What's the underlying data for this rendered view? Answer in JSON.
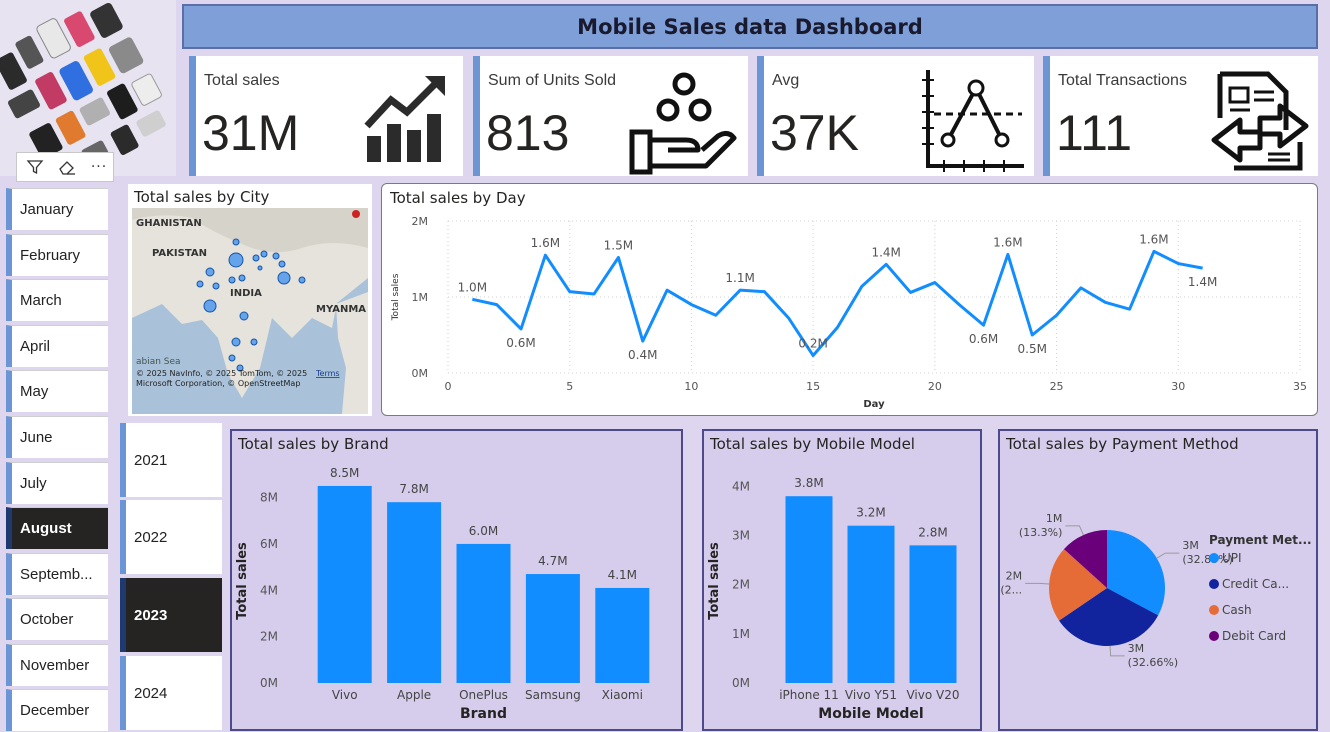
{
  "header": {
    "title": "Mobile Sales data Dashboard"
  },
  "kpis": [
    {
      "label": "Total sales",
      "value": "31M",
      "icon": "trend-up-chart-icon"
    },
    {
      "label": "Sum of Units Sold",
      "value": "813",
      "icon": "hand-coins-icon"
    },
    {
      "label": "Avg",
      "value": "37K",
      "icon": "average-chart-icon"
    },
    {
      "label": "Total Transactions",
      "value": "111",
      "icon": "transaction-document-icon"
    }
  ],
  "filter_toolbar": {
    "icons": [
      "filter-icon",
      "eraser-icon",
      "more-options-icon"
    ],
    "more_label": "···"
  },
  "months": {
    "items": [
      "January",
      "February",
      "March",
      "April",
      "May",
      "June",
      "July",
      "August",
      "Septemb...",
      "October",
      "November",
      "December"
    ],
    "selected": "August"
  },
  "years": {
    "items": [
      "2021",
      "2022",
      "2023",
      "2024"
    ],
    "selected": "2023"
  },
  "map": {
    "title": "Total sales by City",
    "places": [
      "GHANISTAN",
      "PAKISTAN",
      "INDIA",
      "MYANMA",
      "abian Sea"
    ],
    "attribution_line1": "© 2025 NavInfo, © 2025 TomTom, © 2025",
    "attribution_terms": "Terms",
    "attribution_line2": "Microsoft Corporation, © OpenStreetMap"
  },
  "chart_data": [
    {
      "id": "day",
      "type": "line",
      "title": "Total sales by Day",
      "xlabel": "Day",
      "ylabel": "Total sales",
      "xlim": [
        0,
        35
      ],
      "xticks": [
        0,
        5,
        10,
        15,
        20,
        25,
        30,
        35
      ],
      "ylim": [
        0,
        2
      ],
      "yticks": [
        {
          "v": 0,
          "label": "0M"
        },
        {
          "v": 1,
          "label": "1M"
        },
        {
          "v": 2,
          "label": "2M"
        }
      ],
      "x": [
        1,
        2,
        3,
        4,
        5,
        6,
        7,
        8,
        9,
        10,
        11,
        12,
        13,
        14,
        15,
        16,
        17,
        18,
        19,
        20,
        21,
        22,
        23,
        24,
        25,
        26,
        27,
        28,
        29,
        30,
        31
      ],
      "y": [
        0.97,
        0.9,
        0.58,
        1.55,
        1.07,
        1.04,
        1.52,
        0.42,
        1.09,
        0.9,
        0.76,
        1.09,
        1.07,
        0.72,
        0.23,
        0.6,
        1.14,
        1.43,
        1.06,
        1.19,
        0.9,
        0.63,
        1.56,
        0.5,
        0.76,
        1.12,
        0.93,
        0.84,
        1.6,
        1.44,
        1.38
      ],
      "data_labels": [
        {
          "x": 1,
          "label": "1.0M",
          "pos": "above"
        },
        {
          "x": 3,
          "label": "0.6M",
          "pos": "below"
        },
        {
          "x": 4,
          "label": "1.6M",
          "pos": "above"
        },
        {
          "x": 7,
          "label": "1.5M",
          "pos": "above"
        },
        {
          "x": 8,
          "label": "0.4M",
          "pos": "below"
        },
        {
          "x": 12,
          "label": "1.1M",
          "pos": "above"
        },
        {
          "x": 15,
          "label": "0.2M",
          "pos": "above"
        },
        {
          "x": 18,
          "label": "1.4M",
          "pos": "above"
        },
        {
          "x": 22,
          "label": "0.6M",
          "pos": "below"
        },
        {
          "x": 23,
          "label": "1.6M",
          "pos": "above"
        },
        {
          "x": 24,
          "label": "0.5M",
          "pos": "below"
        },
        {
          "x": 29,
          "label": "1.6M",
          "pos": "above"
        },
        {
          "x": 31,
          "label": "1.4M",
          "pos": "below"
        }
      ],
      "color": "#118dff",
      "grid": true
    },
    {
      "id": "brand",
      "type": "bar",
      "title": "Total sales by Brand",
      "xlabel": "Brand",
      "ylabel": "Total sales",
      "categories": [
        "Vivo",
        "Apple",
        "OnePlus",
        "Samsung",
        "Xiaomi"
      ],
      "values": [
        8.5,
        7.8,
        6.0,
        4.7,
        4.1
      ],
      "value_labels": [
        "8.5M",
        "7.8M",
        "6.0M",
        "4.7M",
        "4.1M"
      ],
      "ylim": [
        0,
        8.8
      ],
      "yticks": [
        {
          "v": 0,
          "label": "0M"
        },
        {
          "v": 2,
          "label": "2M"
        },
        {
          "v": 4,
          "label": "4M"
        },
        {
          "v": 6,
          "label": "6M"
        },
        {
          "v": 8,
          "label": "8M"
        }
      ],
      "color": "#118dff"
    },
    {
      "id": "model",
      "type": "bar",
      "title": "Total sales by Mobile Model",
      "xlabel": "Mobile Model",
      "ylabel": "Total sales",
      "categories": [
        "iPhone 11",
        "Vivo Y51",
        "Vivo V20"
      ],
      "values": [
        3.8,
        3.2,
        2.8
      ],
      "value_labels": [
        "3.8M",
        "3.2M",
        "2.8M"
      ],
      "ylim": [
        0,
        4.15
      ],
      "yticks": [
        {
          "v": 0,
          "label": "0M"
        },
        {
          "v": 1,
          "label": "1M"
        },
        {
          "v": 2,
          "label": "2M"
        },
        {
          "v": 3,
          "label": "3M"
        },
        {
          "v": 4,
          "label": "4M"
        }
      ],
      "color": "#118dff"
    },
    {
      "id": "payment",
      "type": "pie",
      "title": "Total sales by Payment Method",
      "legend_title": "Payment Met...",
      "slices": [
        {
          "name": "UPI",
          "legend": "UPI",
          "value": 32.83,
          "label1": "3M",
          "label2": "(32.83%)",
          "color": "#118dff"
        },
        {
          "name": "Credit Card",
          "legend": "Credit Ca...",
          "value": 32.66,
          "label1": "3M",
          "label2": "(32.66%)",
          "color": "#12239e"
        },
        {
          "name": "Cash",
          "legend": "Cash",
          "value": 21.21,
          "label1": "2M",
          "label2": "(2...",
          "color": "#e66c37"
        },
        {
          "name": "Debit Card",
          "legend": "Debit Card",
          "value": 13.3,
          "label1": "1M",
          "label2": "(13.3%)",
          "color": "#6b007b"
        }
      ],
      "legend_position": "right"
    }
  ]
}
